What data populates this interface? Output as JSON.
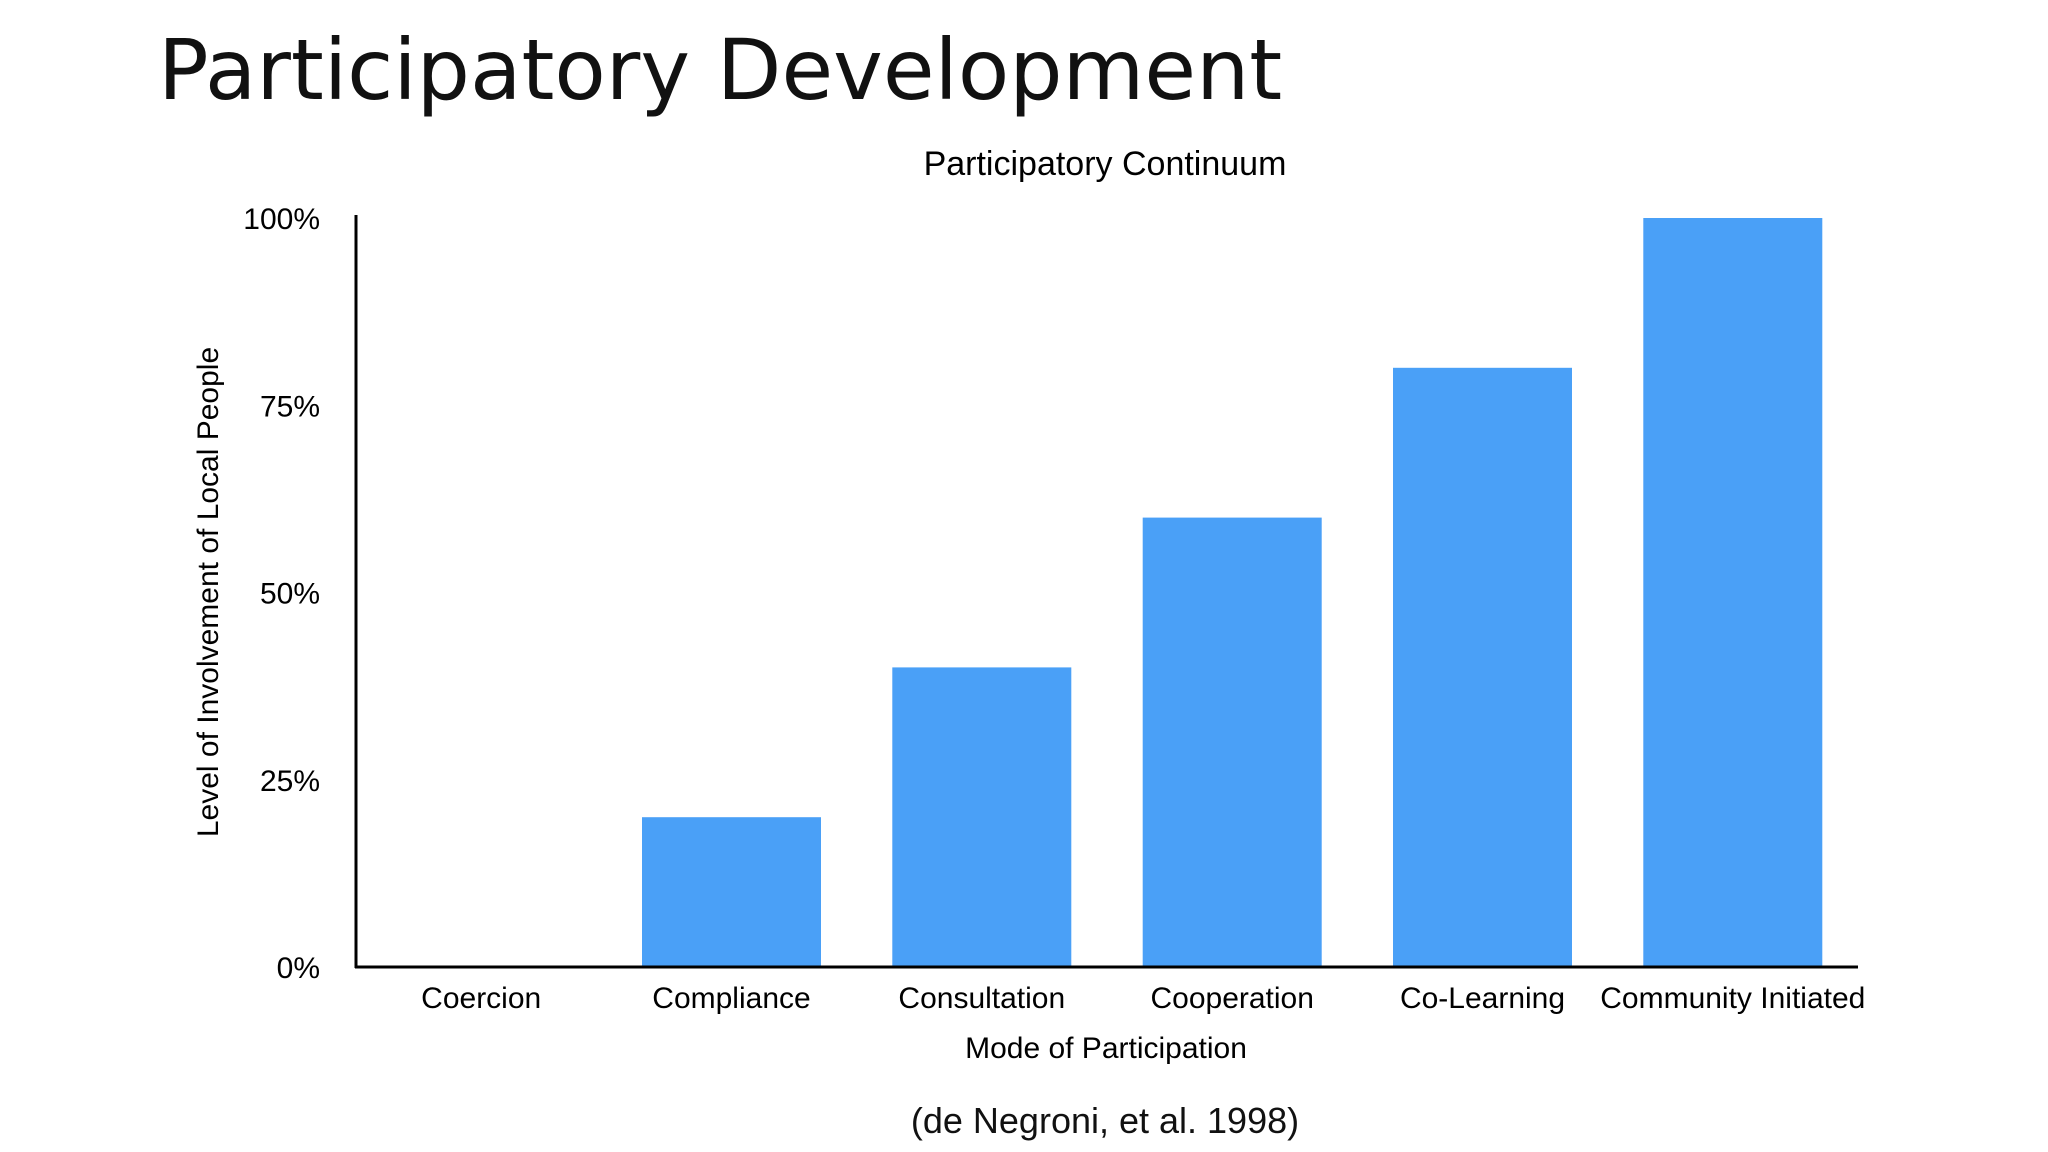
{
  "slide": {
    "title": "Participatory Development",
    "citation": "(de Negroni, et al. 1998)"
  },
  "chart_data": {
    "type": "bar",
    "title": "Participatory Continuum",
    "xlabel": "Mode of Participation",
    "ylabel": "Level of Involvement of Local People",
    "categories": [
      "Coercion",
      "Compliance",
      "Consultation",
      "Cooperation",
      "Co-Learning",
      "Community Initiated"
    ],
    "values": [
      0,
      20,
      40,
      60,
      80,
      100
    ],
    "ylim": [
      0,
      100
    ],
    "yticks": [
      0,
      25,
      50,
      75,
      100
    ],
    "ytick_labels": [
      "0%",
      "25%",
      "50%",
      "75%",
      "100%"
    ],
    "grid": false,
    "legend": "none",
    "bar_color": "#4aa0f7"
  }
}
